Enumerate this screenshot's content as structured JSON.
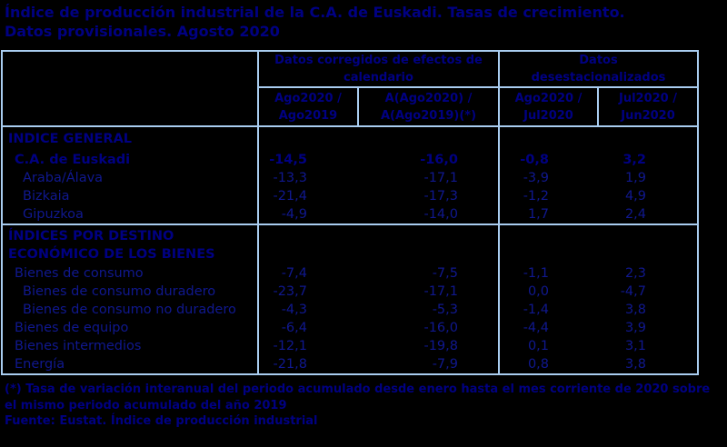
{
  "colors": {
    "bg": "#000000",
    "text": "#10188f",
    "text-strong": "#000082",
    "border": "#a9cdf0"
  },
  "title": {
    "line1": "Índice de producción industrial de la C.A. de Euskadi. Tasas de crecimiento.",
    "line2": "Datos provisionales. Agosto 2020"
  },
  "table": {
    "col_groups": [
      {
        "line1": "Datos corregidos de efectos de",
        "line2": "calendario"
      },
      {
        "line1": "Datos",
        "line2": "desestacionalizados"
      }
    ],
    "sub_columns": [
      {
        "line1": "Ago2020 /",
        "line2": "Ago2019"
      },
      {
        "line1": "A(Ago2020) /",
        "line2": "A(Ago2019)(*)"
      },
      {
        "line1": "Ago2020 /",
        "line2": "Jul2020"
      },
      {
        "line1": "Jul2020 /",
        "line2": "Jun2020"
      }
    ],
    "sections": [
      {
        "header_lines": [
          "INDICE GENERAL"
        ],
        "rows": [
          {
            "label": "C.A. de Euskadi",
            "indent": 1,
            "bold": true,
            "values": [
              "-14,5",
              "-16,0",
              "-0,8",
              "3,2"
            ]
          },
          {
            "label": "Araba/Álava",
            "indent": 2,
            "bold": false,
            "values": [
              "-13,3",
              "-17,1",
              "-3,9",
              "1,9"
            ]
          },
          {
            "label": "Bizkaia",
            "indent": 2,
            "bold": false,
            "values": [
              "-21,4",
              "-17,3",
              "-1,2",
              "4,9"
            ]
          },
          {
            "label": "Gipuzkoa",
            "indent": 2,
            "bold": false,
            "values": [
              "-4,9",
              "-14,0",
              "1,7",
              "2,4"
            ]
          }
        ]
      },
      {
        "header_lines": [
          "ÍNDICES POR DESTINO",
          "ECONÓMICO DE LOS BIENES"
        ],
        "rows": [
          {
            "label": "Bienes de consumo",
            "indent": 1,
            "bold": false,
            "values": [
              "-7,4",
              "-7,5",
              "-1,1",
              "2,3"
            ]
          },
          {
            "label": "Bienes de consumo duradero",
            "indent": 2,
            "bold": false,
            "values": [
              "-23,7",
              "-17,1",
              "0,0",
              "-4,7"
            ]
          },
          {
            "label": "Bienes de consumo no duradero",
            "indent": 2,
            "bold": false,
            "values": [
              "-4,3",
              "-5,3",
              "-1,4",
              "3,8"
            ]
          },
          {
            "label": "Bienes de equipo",
            "indent": 1,
            "bold": false,
            "values": [
              "-6,4",
              "-16,0",
              "-4,4",
              "3,9"
            ]
          },
          {
            "label": "Bienes intermedios",
            "indent": 1,
            "bold": false,
            "values": [
              "-12,1",
              "-19,8",
              "0,1",
              "3,1"
            ]
          },
          {
            "label": "Energía",
            "indent": 1,
            "bold": false,
            "values": [
              "-21,8",
              "-7,9",
              "0,8",
              "3,8"
            ]
          }
        ]
      }
    ]
  },
  "footnote": {
    "line1": "(*) Tasa de variación interanual del periodo acumulado desde enero hasta el mes corriente de 2020 sobre",
    "line2": "el mismo periodo acumulado del año 2019"
  },
  "source": "Fuente: Eustat. Índice de producción industrial"
}
